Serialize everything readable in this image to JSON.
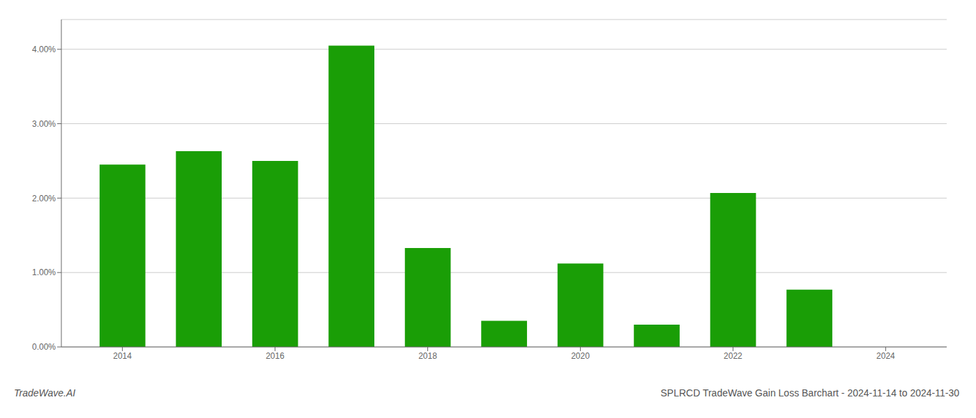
{
  "chart_data": {
    "type": "bar",
    "title": "SPLRCD TradeWave Gain Loss Barchart - 2024-11-14 to 2024-11-30",
    "annotations": [
      "TradeWave.AI"
    ],
    "x": [
      2014,
      2015,
      2016,
      2017,
      2018,
      2019,
      2020,
      2021,
      2022,
      2023
    ],
    "values": [
      0.0245,
      0.0263,
      0.025,
      0.0405,
      0.0133,
      0.0035,
      0.0112,
      0.003,
      0.0207,
      0.0077
    ],
    "color": "#1a9e06",
    "xlim": [
      2013.2,
      2024.8
    ],
    "xticks": [
      2014,
      2016,
      2018,
      2020,
      2022,
      2024
    ],
    "ylim": [
      0,
      0.044
    ],
    "yticks": [
      {
        "value": 0.0,
        "label": "0.00%"
      },
      {
        "value": 0.01,
        "label": "1.00%"
      },
      {
        "value": 0.02,
        "label": "2.00%"
      },
      {
        "value": 0.03,
        "label": "3.00%"
      },
      {
        "value": 0.04,
        "label": "4.00%"
      }
    ],
    "grid": true
  }
}
